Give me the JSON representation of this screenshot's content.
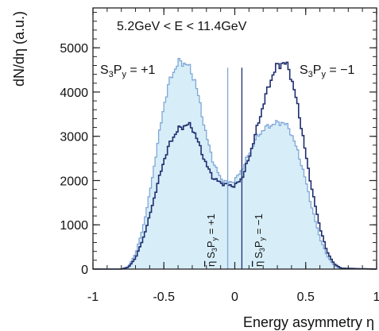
{
  "chart_data": {
    "type": "line",
    "title": "5.2GeV < E < 11.4GeV",
    "xlabel": "Energy asymmetry η",
    "ylabel": "dN/dη  (a.u.)",
    "xlim": [
      -1,
      1
    ],
    "ylim": [
      0,
      5900
    ],
    "x_ticks": [
      -1,
      -0.5,
      0,
      0.5,
      1
    ],
    "x_tick_labels": [
      "-1",
      "-0.5",
      "0",
      "0.5",
      "1"
    ],
    "y_ticks": [
      0,
      1000,
      2000,
      3000,
      4000,
      5000
    ],
    "y_tick_labels": [
      "0",
      "1000",
      "2000",
      "3000",
      "4000",
      "5000"
    ],
    "grid": false,
    "legend": "none",
    "colors": {
      "light": "#7fa7d6",
      "fill": "#d7eef9",
      "dark": "#1f2e6e"
    },
    "series": [
      {
        "key": "plus",
        "x": [
          -1.0,
          -0.8,
          -0.75,
          -0.7,
          -0.65,
          -0.6,
          -0.55,
          -0.5,
          -0.45,
          -0.4,
          -0.38,
          -0.35,
          -0.33,
          -0.3,
          -0.28,
          -0.25,
          -0.2,
          -0.15,
          -0.1,
          -0.05,
          0.0,
          0.05,
          0.1,
          0.15,
          0.2,
          0.25,
          0.3,
          0.33,
          0.35,
          0.38,
          0.4,
          0.45,
          0.5,
          0.55,
          0.6,
          0.65,
          0.7,
          0.75,
          1.0
        ],
        "values": [
          0,
          0,
          60,
          350,
          900,
          1700,
          2700,
          3700,
          4350,
          4650,
          4680,
          4650,
          4600,
          4400,
          4250,
          3800,
          3000,
          2400,
          2050,
          1950,
          2000,
          2250,
          2600,
          2950,
          3150,
          3250,
          3300,
          3320,
          3280,
          3200,
          3050,
          2600,
          2000,
          1300,
          700,
          300,
          80,
          10,
          0
        ]
      },
      {
        "key": "minus",
        "x": [
          -1.0,
          -0.8,
          -0.75,
          -0.7,
          -0.65,
          -0.6,
          -0.55,
          -0.5,
          -0.45,
          -0.4,
          -0.35,
          -0.33,
          -0.3,
          -0.28,
          -0.25,
          -0.2,
          -0.15,
          -0.1,
          -0.05,
          0.0,
          0.05,
          0.1,
          0.15,
          0.2,
          0.25,
          0.3,
          0.33,
          0.35,
          0.38,
          0.4,
          0.45,
          0.5,
          0.55,
          0.6,
          0.65,
          0.7,
          0.75,
          1.0
        ],
        "values": [
          0,
          0,
          40,
          250,
          650,
          1200,
          1850,
          2450,
          2900,
          3150,
          3250,
          3260,
          3200,
          3050,
          2800,
          2350,
          2050,
          1950,
          1900,
          1880,
          2050,
          2500,
          3100,
          3700,
          4250,
          4600,
          4650,
          4650,
          4550,
          4300,
          3600,
          2600,
          1700,
          950,
          400,
          120,
          20,
          0
        ]
      }
    ],
    "markers": [
      {
        "x": -0.05,
        "color": "light"
      },
      {
        "x": 0.05,
        "color": "dark"
      }
    ],
    "annotations": {
      "left_peak": {
        "main": "S",
        "sub1": "3",
        "mid": "P",
        "sub2": "y",
        "tail": " = +1"
      },
      "right_peak": {
        "main": "S",
        "sub1": "3",
        "mid": "P",
        "sub2": "y",
        "tail": " = −1"
      },
      "marker_left": {
        "eta": "η",
        "main": "S",
        "sub1": "3",
        "mid": "P",
        "sub2": "y",
        "tail": " = +1"
      },
      "marker_right": {
        "eta": "η",
        "main": "S",
        "sub1": "3",
        "mid": "P",
        "sub2": "y",
        "tail": " = −1"
      }
    }
  }
}
